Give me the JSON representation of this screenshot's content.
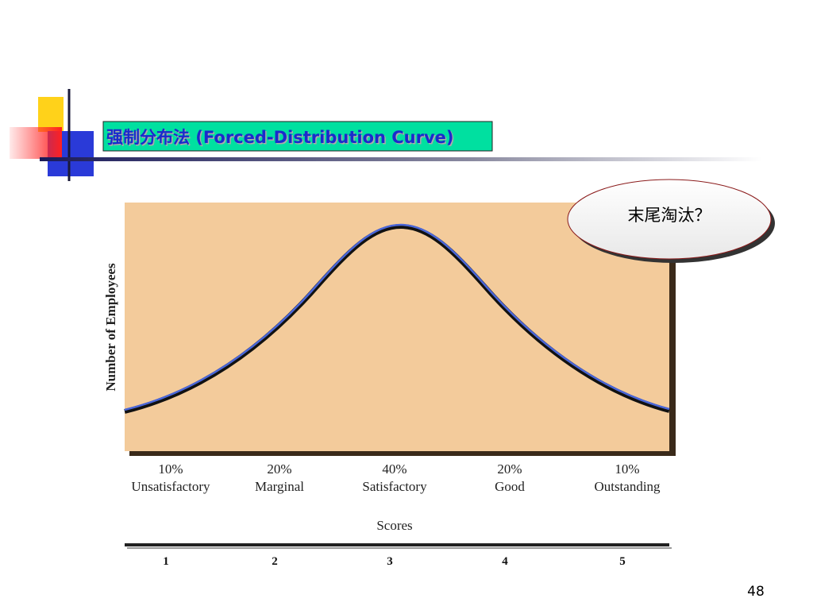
{
  "title": "强制分布法 (Forced-Distribution Curve)",
  "callout": "末尾淘汰？",
  "figure": {
    "y_axis_label": "Number of Employees",
    "categories": [
      {
        "share": "10%",
        "label": "Unsatisfactory"
      },
      {
        "share": "20%",
        "label": "Marginal"
      },
      {
        "share": "40%",
        "label": "Satisfactory"
      },
      {
        "share": "20%",
        "label": "Good"
      },
      {
        "share": "10%",
        "label": "Outstanding"
      }
    ],
    "x_axis_label": "Scores",
    "scores": [
      1,
      2,
      3,
      4,
      5
    ]
  },
  "page_number": "48"
}
